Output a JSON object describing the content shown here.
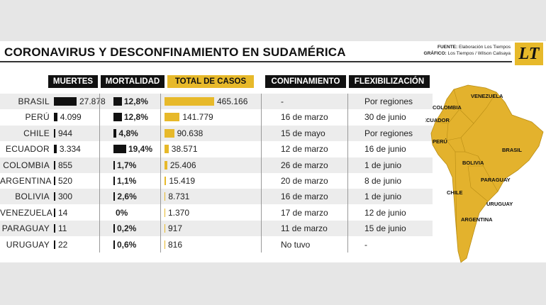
{
  "title": "CORONAVIRUS Y DESCONFINAMIENTO EN SUDAMÉRICA",
  "credits": {
    "fuente_label": "FUENTE:",
    "fuente_value": "Elaboración Los Tiempos",
    "grafico_label": "GRÁFICO:",
    "grafico_value": "Los Tiempos / Wilson Calisaya"
  },
  "logo_text": "LT",
  "colors": {
    "accent": "#e7b92a",
    "dark": "#111111"
  },
  "chart_data": {
    "type": "table",
    "headers": {
      "muertes": "MUERTES",
      "mortalidad": "MORTALIDAD",
      "casos": "TOTAL DE CASOS",
      "confinamiento": "CONFINAMIENTO",
      "flexibilizacion": "FLEXIBILIZACIÓN"
    },
    "rows": [
      {
        "country": "BRASIL",
        "deaths": 27878,
        "deaths_label": "27.878",
        "mortality": 12.8,
        "mortality_label": "12,8%",
        "cases": 465166,
        "cases_label": "465.166",
        "confinement": "-",
        "flex": "Por regiones"
      },
      {
        "country": "PERÚ",
        "deaths": 4099,
        "deaths_label": "4.099",
        "mortality": 12.8,
        "mortality_label": "12,8%",
        "cases": 141779,
        "cases_label": "141.779",
        "confinement": "16 de marzo",
        "flex": "30 de junio"
      },
      {
        "country": "CHILE",
        "deaths": 944,
        "deaths_label": "944",
        "mortality": 4.8,
        "mortality_label": "4,8%",
        "cases": 90638,
        "cases_label": "90.638",
        "confinement": "15 de mayo",
        "flex": "Por regiones"
      },
      {
        "country": "ECUADOR",
        "deaths": 3334,
        "deaths_label": "3.334",
        "mortality": 19.4,
        "mortality_label": "19,4%",
        "cases": 38571,
        "cases_label": "38.571",
        "confinement": "12 de marzo",
        "flex": "16 de junio"
      },
      {
        "country": "COLOMBIA",
        "deaths": 855,
        "deaths_label": "855",
        "mortality": 1.7,
        "mortality_label": "1,7%",
        "cases": 25406,
        "cases_label": "25.406",
        "confinement": "26 de marzo",
        "flex": "1 de junio"
      },
      {
        "country": "ARGENTINA",
        "deaths": 520,
        "deaths_label": "520",
        "mortality": 1.1,
        "mortality_label": "1,1%",
        "cases": 15419,
        "cases_label": "15.419",
        "confinement": "20 de marzo",
        "flex": "8 de junio"
      },
      {
        "country": "BOLIVIA",
        "deaths": 300,
        "deaths_label": "300",
        "mortality": 2.6,
        "mortality_label": "2,6%",
        "cases": 8731,
        "cases_label": "8.731",
        "confinement": "16 de marzo",
        "flex": "1 de junio"
      },
      {
        "country": "VENEZUELA",
        "deaths": 14,
        "deaths_label": "14",
        "mortality": 0,
        "mortality_label": "0%",
        "cases": 1370,
        "cases_label": "1.370",
        "confinement": "17 de marzo",
        "flex": "12 de junio"
      },
      {
        "country": "PARAGUAY",
        "deaths": 11,
        "deaths_label": "11",
        "mortality": 0.2,
        "mortality_label": "0,2%",
        "cases": 917,
        "cases_label": "917",
        "confinement": "11 de marzo",
        "flex": "15 de junio"
      },
      {
        "country": "URUGUAY",
        "deaths": 22,
        "deaths_label": "22",
        "mortality": 0.6,
        "mortality_label": "0,6%",
        "cases": 816,
        "cases_label": "816",
        "confinement": "No tuvo",
        "flex": "-"
      }
    ]
  },
  "map": {
    "labels": [
      "VENEZUELA",
      "COLOMBIA",
      "ECUADOR",
      "PERÚ",
      "BRASIL",
      "BOLIVIA",
      "PARAGUAY",
      "CHILE",
      "URUGUAY",
      "ARGENTINA"
    ]
  }
}
